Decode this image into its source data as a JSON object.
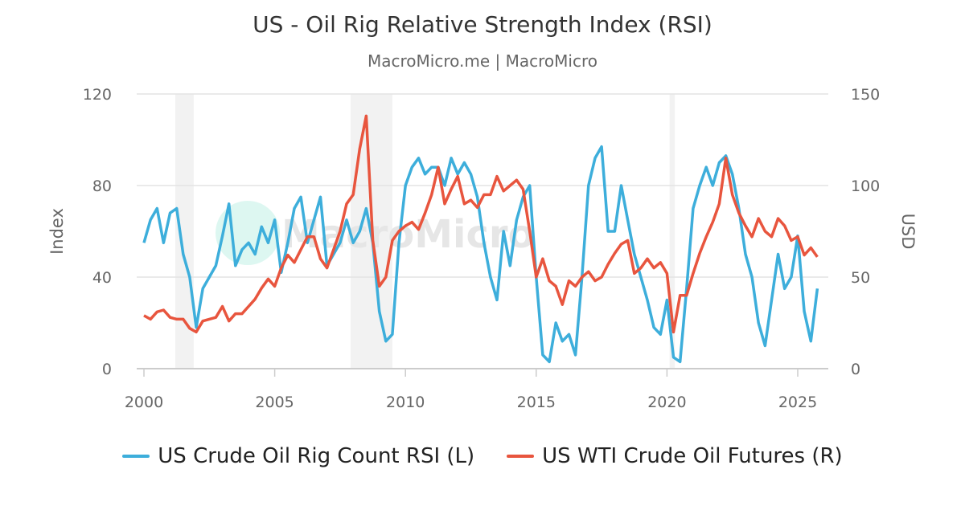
{
  "chart_data": {
    "type": "line",
    "title": "US - Oil Rig Relative Strength Index (RSI)",
    "subtitle": "MacroMicro.me | MacroMicro",
    "watermark": "MacroMicro",
    "ylabel_left": "Index",
    "ylabel_right": "USD",
    "ylim_left": [
      0,
      120
    ],
    "ylim_right": [
      0,
      150
    ],
    "yticks_left": [
      "0",
      "40",
      "80",
      "120"
    ],
    "yticks_right": [
      "0",
      "50",
      "100",
      "150"
    ],
    "xlim": [
      2000,
      2026
    ],
    "xticks": [
      "2000",
      "2005",
      "2010",
      "2015",
      "2020",
      "2025"
    ],
    "grid": true,
    "legend_position": "bottom",
    "recession_shading": [
      [
        2001.2,
        2001.9
      ],
      [
        2007.9,
        2009.5
      ],
      [
        2020.1,
        2020.3
      ]
    ],
    "colors": {
      "rsi": "#3daedb",
      "wti": "#e8553e",
      "recession": "#f2f2f2"
    },
    "x": [
      2000,
      2000.25,
      2000.5,
      2000.75,
      2001,
      2001.25,
      2001.5,
      2001.75,
      2002,
      2002.25,
      2002.5,
      2002.75,
      2003,
      2003.25,
      2003.5,
      2003.75,
      2004,
      2004.25,
      2004.5,
      2004.75,
      2005,
      2005.25,
      2005.5,
      2005.75,
      2006,
      2006.25,
      2006.5,
      2006.75,
      2007,
      2007.25,
      2007.5,
      2007.75,
      2008,
      2008.25,
      2008.5,
      2008.75,
      2009,
      2009.25,
      2009.5,
      2009.75,
      2010,
      2010.25,
      2010.5,
      2010.75,
      2011,
      2011.25,
      2011.5,
      2011.75,
      2012,
      2012.25,
      2012.5,
      2012.75,
      2013,
      2013.25,
      2013.5,
      2013.75,
      2014,
      2014.25,
      2014.5,
      2014.75,
      2015,
      2015.25,
      2015.5,
      2015.75,
      2016,
      2016.25,
      2016.5,
      2016.75,
      2017,
      2017.25,
      2017.5,
      2017.75,
      2018,
      2018.25,
      2018.5,
      2018.75,
      2019,
      2019.25,
      2019.5,
      2019.75,
      2020,
      2020.25,
      2020.5,
      2020.75,
      2021,
      2021.25,
      2021.5,
      2021.75,
      2022,
      2022.25,
      2022.5,
      2022.75,
      2023,
      2023.25,
      2023.5,
      2023.75,
      2024,
      2024.25,
      2024.5,
      2024.75,
      2025,
      2025.25,
      2025.5,
      2025.75
    ],
    "series": [
      {
        "name": "US Crude Oil Rig Count RSI (L)",
        "axis": "left",
        "values": [
          55,
          65,
          70,
          55,
          68,
          70,
          50,
          40,
          18,
          35,
          40,
          45,
          58,
          72,
          45,
          52,
          55,
          50,
          62,
          55,
          65,
          42,
          55,
          70,
          75,
          55,
          65,
          75,
          45,
          50,
          55,
          65,
          55,
          60,
          70,
          55,
          25,
          12,
          15,
          55,
          80,
          88,
          92,
          85,
          88,
          88,
          80,
          92,
          85,
          90,
          85,
          75,
          55,
          40,
          30,
          60,
          45,
          65,
          75,
          80,
          40,
          6,
          3,
          20,
          12,
          15,
          6,
          40,
          80,
          92,
          97,
          60,
          60,
          80,
          65,
          50,
          40,
          30,
          18,
          15,
          30,
          5,
          3,
          35,
          70,
          80,
          88,
          80,
          90,
          93,
          85,
          70,
          50,
          40,
          20,
          10,
          30,
          50,
          35,
          40,
          58,
          25,
          12,
          35
        ]
      },
      {
        "name": "US WTI Crude Oil Futures (R)",
        "axis": "right",
        "values": [
          29,
          27,
          31,
          32,
          28,
          27,
          27,
          22,
          20,
          26,
          27,
          28,
          34,
          26,
          30,
          30,
          34,
          38,
          44,
          49,
          45,
          55,
          62,
          58,
          65,
          72,
          72,
          60,
          55,
          65,
          75,
          90,
          95,
          120,
          138,
          70,
          45,
          50,
          70,
          75,
          78,
          80,
          76,
          85,
          95,
          110,
          90,
          98,
          105,
          90,
          92,
          88,
          95,
          95,
          105,
          97,
          100,
          103,
          98,
          75,
          50,
          60,
          48,
          45,
          35,
          48,
          45,
          50,
          53,
          48,
          50,
          57,
          63,
          68,
          70,
          52,
          55,
          60,
          55,
          58,
          52,
          20,
          40,
          40,
          52,
          63,
          72,
          80,
          90,
          115,
          95,
          85,
          78,
          72,
          82,
          75,
          72,
          82,
          78,
          70,
          72,
          62,
          66,
          61
        ]
      }
    ]
  }
}
